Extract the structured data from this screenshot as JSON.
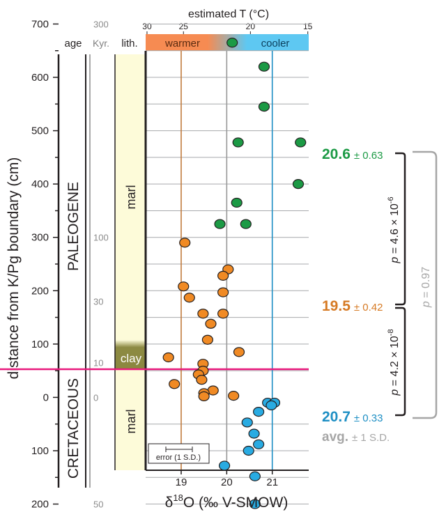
{
  "chart_data": {
    "type": "scatter",
    "xlabel": "δ18O (‰ V-SMOW)",
    "xlabel_main": "δ",
    "xlabel_sup": "18",
    "xlabel_rest": "O (‰ V-SMOW)",
    "ylabel": "distance from K/Pg boundary (cm)",
    "x_ticks": [
      19,
      20,
      21
    ],
    "y_ticks": [
      -200,
      -100,
      0,
      100,
      200,
      300,
      400,
      500,
      600,
      700
    ],
    "y_tick_labels": [
      "200",
      "100",
      "0",
      "100",
      "200",
      "300",
      "400",
      "500",
      "600",
      "700"
    ],
    "xlim": [
      18.22,
      21.8
    ],
    "ylim": [
      -228,
      745
    ],
    "top_axis": {
      "title": "estimated T (°C)",
      "ticks": [
        30,
        25,
        20,
        15
      ],
      "tick_x": [
        18.25,
        19.05,
        20.52,
        21.78
      ],
      "warm_label": "warmer",
      "cool_label": "cooler",
      "warm_color": "#f68b52",
      "cool_color": "#5ec8f2"
    },
    "columns": {
      "age": "age",
      "kyr": "Kyr.",
      "lith": "lith.",
      "paleogene": "PALEOGENE",
      "cretaceous": "CRETACEOUS",
      "kyr_marks": [
        {
          "label": "300",
          "y": 700
        },
        {
          "label": "100",
          "y": 300
        },
        {
          "label": "30",
          "y": 180
        },
        {
          "label": "10",
          "y": 65
        },
        {
          "label": "0",
          "y": 0
        },
        {
          "label": "50",
          "y": -200
        }
      ],
      "marl_upper": "marl",
      "clay": "clay",
      "marl_lower": "marl"
    },
    "reference_lines": [
      {
        "x": 19.0,
        "color": "#c07a3c"
      },
      {
        "x": 20.0,
        "color": "#999999"
      },
      {
        "x": 21.0,
        "color": "#1e8fc4"
      }
    ],
    "boundary_color": "#e8197c",
    "series": [
      {
        "color": "#1c9a45",
        "points": [
          [
            20.12,
            665
          ],
          [
            20.82,
            620
          ],
          [
            20.82,
            545
          ],
          [
            20.25,
            478
          ],
          [
            21.62,
            478
          ],
          [
            21.57,
            400
          ],
          [
            20.22,
            365
          ],
          [
            19.85,
            325
          ],
          [
            20.42,
            325
          ]
        ]
      },
      {
        "color": "#f08a24",
        "points": [
          [
            19.08,
            290
          ],
          [
            20.03,
            240
          ],
          [
            19.92,
            228
          ],
          [
            19.05,
            208
          ],
          [
            19.92,
            197
          ],
          [
            19.18,
            187
          ],
          [
            19.48,
            157
          ],
          [
            19.92,
            157
          ],
          [
            19.65,
            138
          ],
          [
            19.58,
            108
          ],
          [
            18.72,
            75
          ],
          [
            20.27,
            85
          ],
          [
            19.48,
            63
          ],
          [
            19.48,
            50
          ],
          [
            19.38,
            43
          ],
          [
            19.45,
            33
          ],
          [
            19.7,
            13
          ],
          [
            19.5,
            8
          ],
          [
            19.5,
            2
          ],
          [
            20.15,
            3
          ],
          [
            18.85,
            25
          ]
        ]
      },
      {
        "color": "#29abe2",
        "points": [
          [
            20.9,
            -10
          ],
          [
            21.05,
            -10
          ],
          [
            20.98,
            -15
          ],
          [
            20.7,
            -27
          ],
          [
            20.45,
            -47
          ],
          [
            20.6,
            -68
          ],
          [
            20.48,
            -100
          ],
          [
            20.7,
            -88
          ],
          [
            19.95,
            -128
          ],
          [
            20.62,
            -148
          ],
          [
            20.62,
            -200
          ]
        ]
      }
    ],
    "annotations": {
      "paleogene": {
        "value": "20.6",
        "sd": "± 0.63",
        "color": "#1c9a45"
      },
      "clay": {
        "value": "19.5",
        "sd": "± 0.42",
        "color": "#d67a24"
      },
      "cretaceous": {
        "value": "20.7",
        "sd": "± 0.33",
        "color": "#1e8fc4"
      },
      "legend": {
        "value": "avg.",
        "sd": "± 1 S.D.",
        "color": "#a6a6a6"
      },
      "p_upper": {
        "prefix": "p",
        "mid": " = 4.6 × 10",
        "exp": "-6"
      },
      "p_lower": {
        "prefix": "p",
        "mid": " = 4.2 × 10",
        "exp": "-8"
      },
      "p_total": {
        "prefix": "p",
        "mid": " = 0.97"
      },
      "error_label": "error (1 S.D.)"
    }
  }
}
